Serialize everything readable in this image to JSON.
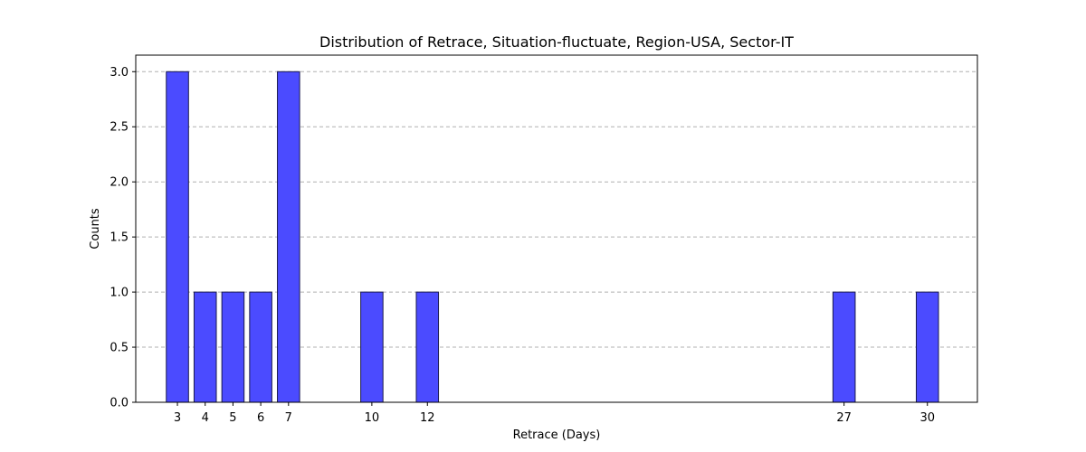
{
  "chart_data": {
    "type": "bar",
    "title": "Distribution of Retrace, Situation-fluctuate, Region-USA, Sector-IT",
    "xlabel": "Retrace (Days)",
    "ylabel": "Counts",
    "x": [
      3,
      4,
      5,
      6,
      7,
      10,
      12,
      27,
      30
    ],
    "values": [
      3,
      1,
      1,
      1,
      3,
      1,
      1,
      1,
      1
    ],
    "x_tick_labels": [
      "3",
      "4",
      "5",
      "6",
      "7",
      "10",
      "12",
      "27",
      "30"
    ],
    "y_ticks": [
      0.0,
      0.5,
      1.0,
      1.5,
      2.0,
      2.5,
      3.0
    ],
    "y_tick_labels": [
      "0.0",
      "0.5",
      "1.0",
      "1.5",
      "2.0",
      "2.5",
      "3.0"
    ],
    "xlim": [
      1.5,
      31.8
    ],
    "ylim": [
      0,
      3.15
    ],
    "bar_width": 0.8,
    "bar_color": "#4b4bff",
    "grid": "y-dashed",
    "legend": "none"
  }
}
